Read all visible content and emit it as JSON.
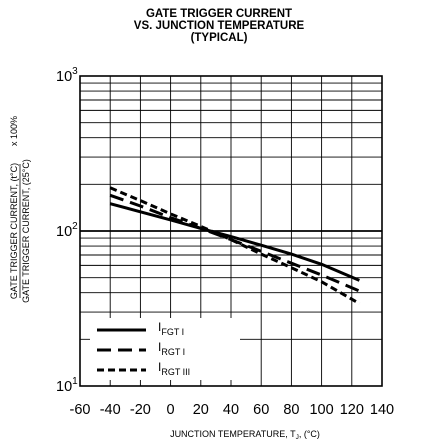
{
  "chart_data": {
    "type": "line",
    "title_lines": [
      "GATE TRIGGER CURRENT",
      "VS. JUNCTION TEMPERATURE",
      "(TYPICAL)"
    ],
    "xlabel": "JUNCTION TEMPERATURE, T",
    "xlabel_sub": "J",
    "xlabel_suffix": ", (°C)",
    "ylabel_numerator": "GATE TRIGGER CURRENT, (t°C)",
    "ylabel_denominator": "GATE TRIGGER CURRENT, (25°C)",
    "ylabel_multiplier": "x 100%",
    "x_ticks": [
      "-60",
      "-40",
      "-20",
      "0",
      "20",
      "40",
      "60",
      "80",
      "100",
      "120",
      "140"
    ],
    "y_ticks": [
      {
        "base": "10",
        "exp": "1"
      },
      {
        "base": "10",
        "exp": "2"
      },
      {
        "base": "10",
        "exp": "3"
      }
    ],
    "xlim": [
      -60,
      140
    ],
    "ylim": [
      10,
      1000
    ],
    "y_scale": "log",
    "grid": true,
    "legend_position": "bottom-left",
    "series": [
      {
        "name": "I",
        "sub": "FGT I",
        "style": "solid",
        "x": [
          -40,
          -20,
          0,
          20,
          40,
          60,
          80,
          100,
          125
        ],
        "y": [
          150,
          133,
          118,
          104,
          92,
          81,
          71,
          61,
          48
        ]
      },
      {
        "name": "I",
        "sub": "RGT I",
        "style": "long-dash",
        "x": [
          -40,
          -20,
          0,
          20,
          40,
          60,
          80,
          100,
          125
        ],
        "y": [
          170,
          145,
          122,
          104,
          88,
          74,
          62,
          52,
          41
        ]
      },
      {
        "name": "I",
        "sub": "RGT III",
        "style": "short-dash",
        "x": [
          -40,
          -20,
          0,
          20,
          40,
          60,
          80,
          100,
          125
        ],
        "y": [
          190,
          157,
          129,
          107,
          88,
          71,
          58,
          47,
          34
        ]
      }
    ]
  }
}
